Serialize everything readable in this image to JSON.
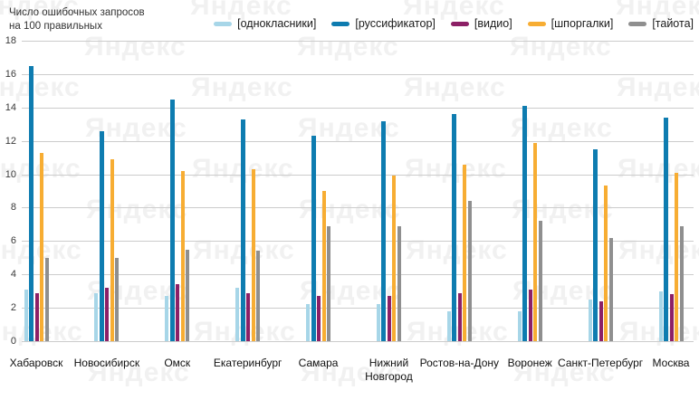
{
  "title": {
    "line1": "Число ошибочных запросов",
    "line2": "на 100 правильных"
  },
  "watermark_text": "Яндекс",
  "chart_data": {
    "type": "bar",
    "title": "Число ошибочных запросов на 100 правильных",
    "xlabel": "",
    "ylabel": "Число ошибочных запросов на 100 правильных",
    "ylim": [
      0,
      18
    ],
    "ytick_step": 2,
    "ytick_labels": [
      "0",
      "2",
      "4",
      "6",
      "8",
      "10",
      "12",
      "14",
      "16",
      "18"
    ],
    "grid": true,
    "legend_position": "top",
    "categories": [
      "Хабаровск",
      "Новосибирск",
      "Омск",
      "Екатеринбург",
      "Самара",
      "Нижний Новгород",
      "Ростов-на-Дону",
      "Воронеж",
      "Санкт-Петербург",
      "Москва"
    ],
    "series": [
      {
        "name": "[однокласники]",
        "color": "#a7d6e8",
        "values": [
          3.1,
          2.9,
          2.7,
          3.2,
          2.2,
          2.2,
          1.8,
          1.8,
          2.5,
          3.0
        ]
      },
      {
        "name": "[руссификатор]",
        "color": "#0e7cb0",
        "values": [
          16.5,
          12.6,
          14.5,
          13.3,
          12.3,
          13.2,
          13.6,
          14.1,
          11.5,
          13.4
        ]
      },
      {
        "name": "[видио]",
        "color": "#8c2066",
        "values": [
          2.9,
          3.2,
          3.4,
          2.9,
          2.7,
          2.7,
          2.9,
          3.1,
          2.4,
          2.8
        ]
      },
      {
        "name": "[шпоргалки]",
        "color": "#f7ad33",
        "values": [
          11.3,
          10.9,
          10.2,
          10.3,
          9.0,
          9.9,
          10.6,
          11.9,
          9.3,
          10.1
        ]
      },
      {
        "name": "[тайота]",
        "color": "#8f8f8f",
        "values": [
          5.0,
          5.0,
          5.5,
          5.4,
          6.9,
          6.9,
          8.4,
          7.2,
          6.2,
          6.9
        ]
      }
    ],
    "gridline_color": "#cccccc"
  }
}
